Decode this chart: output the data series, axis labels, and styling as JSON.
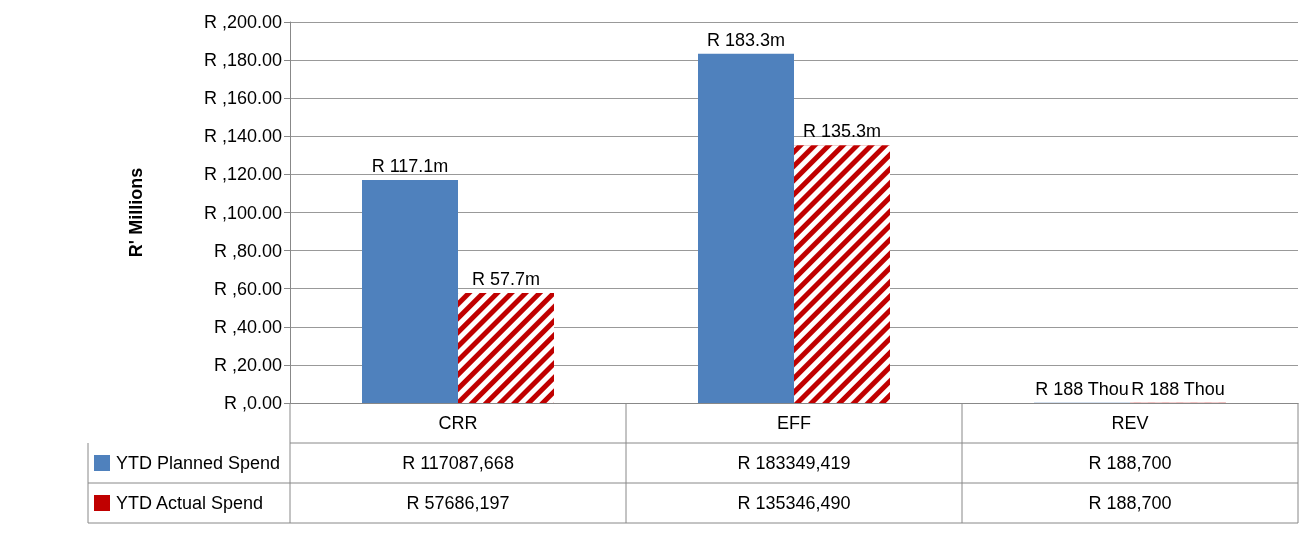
{
  "chart_data": {
    "type": "bar",
    "ylabel": "R' Millions",
    "categories": [
      "CRR",
      "EFF",
      "REV"
    ],
    "series": [
      {
        "name": "YTD Planned Spend",
        "color": "#4f81bd",
        "values": [
          117.1,
          183.3,
          0.19
        ],
        "value_labels": [
          "R 117.1m",
          "R 183.3m",
          "R 188 Thou"
        ]
      },
      {
        "name": "YTD Actual Spend",
        "color": "#c00000",
        "values": [
          57.7,
          135.3,
          0.19
        ],
        "value_labels": [
          "R 57.7m",
          "R 135.3m",
          "R 188 Thou"
        ]
      }
    ],
    "ylim": [
      0,
      200
    ],
    "yticks": [
      {
        "value": 0,
        "label": "R ,0.00"
      },
      {
        "value": 20,
        "label": "R ,20.00"
      },
      {
        "value": 40,
        "label": "R ,40.00"
      },
      {
        "value": 60,
        "label": "R ,60.00"
      },
      {
        "value": 80,
        "label": "R ,80.00"
      },
      {
        "value": 100,
        "label": "R ,100.00"
      },
      {
        "value": 120,
        "label": "R ,120.00"
      },
      {
        "value": 140,
        "label": "R ,140.00"
      },
      {
        "value": 160,
        "label": "R ,160.00"
      },
      {
        "value": 180,
        "label": "R ,180.00"
      },
      {
        "value": 200,
        "label": "R ,200.00"
      }
    ],
    "grid": "y",
    "legend": "bottom left",
    "annotations": [
      "R 117087,668",
      "R 183349,419",
      "R 188,700",
      "R 57686,197",
      "R 135346,490",
      "R 188,700"
    ]
  }
}
